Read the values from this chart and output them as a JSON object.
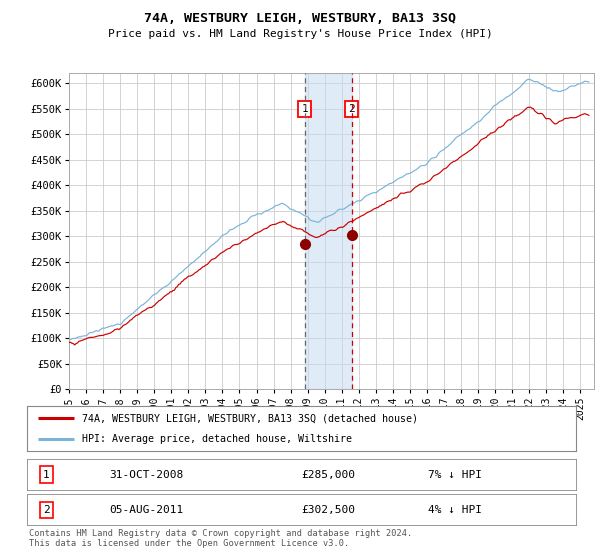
{
  "title": "74A, WESTBURY LEIGH, WESTBURY, BA13 3SQ",
  "subtitle": "Price paid vs. HM Land Registry's House Price Index (HPI)",
  "ylim": [
    0,
    620000
  ],
  "xlim_start": 1995.0,
  "xlim_end": 2025.8,
  "yticks": [
    0,
    50000,
    100000,
    150000,
    200000,
    250000,
    300000,
    350000,
    400000,
    450000,
    500000,
    550000,
    600000
  ],
  "ytick_labels": [
    "£0",
    "£50K",
    "£100K",
    "£150K",
    "£200K",
    "£250K",
    "£300K",
    "£350K",
    "£400K",
    "£450K",
    "£500K",
    "£550K",
    "£600K"
  ],
  "xtick_years": [
    1995,
    1996,
    1997,
    1998,
    1999,
    2000,
    2001,
    2002,
    2003,
    2004,
    2005,
    2006,
    2007,
    2008,
    2009,
    2010,
    2011,
    2012,
    2013,
    2014,
    2015,
    2016,
    2017,
    2018,
    2019,
    2020,
    2021,
    2022,
    2023,
    2024,
    2025
  ],
  "hpi_color": "#7ab4d8",
  "price_color": "#cc0000",
  "marker_color": "#8b0000",
  "vline1_color": "#666666",
  "vline2_color": "#cc0000",
  "shade_color": "#c6dbef",
  "background_color": "#ffffff",
  "grid_color": "#cccccc",
  "point1_year": 2008.83,
  "point1_price": 285000,
  "point2_year": 2011.58,
  "point2_price": 302500,
  "legend_label_red": "74A, WESTBURY LEIGH, WESTBURY, BA13 3SQ (detached house)",
  "legend_label_blue": "HPI: Average price, detached house, Wiltshire",
  "footer": "Contains HM Land Registry data © Crown copyright and database right 2024.\nThis data is licensed under the Open Government Licence v3.0."
}
